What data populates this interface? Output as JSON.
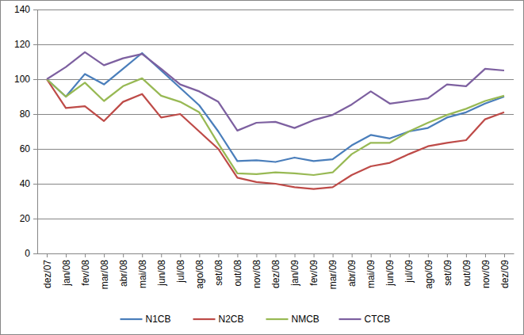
{
  "chart_data": {
    "type": "line",
    "categories": [
      "dez/07",
      "jan/08",
      "fev/08",
      "mar/08",
      "abr/08",
      "mai/08",
      "jun/08",
      "jul/08",
      "ago/08",
      "set/08",
      "out/08",
      "nov/08",
      "dez/08",
      "jan/09",
      "fev/09",
      "mar/09",
      "abr/09",
      "mai/09",
      "jun/09",
      "jul/09",
      "ago/09",
      "set/09",
      "out/09",
      "nov/09",
      "dez/09"
    ],
    "series": [
      {
        "name": "N1CB",
        "color": "#4a7ebb",
        "values": [
          100,
          90,
          103,
          97,
          106,
          115,
          105,
          95,
          85,
          70,
          53,
          53.5,
          52.5,
          55,
          53,
          54,
          62,
          68,
          66,
          70,
          72,
          78,
          81,
          86,
          90
        ]
      },
      {
        "name": "N2CB",
        "color": "#be4b48",
        "values": [
          100,
          83.5,
          84.5,
          76,
          87,
          91.5,
          78,
          80,
          70,
          60,
          43.5,
          41,
          40,
          38,
          37,
          38,
          45,
          50,
          52,
          57,
          61.5,
          63.5,
          65,
          77,
          81
        ]
      },
      {
        "name": "NMCB",
        "color": "#98b954",
        "values": [
          100,
          90,
          98,
          87.5,
          96,
          100.5,
          90.5,
          87,
          81,
          63,
          46,
          45.5,
          46.5,
          46,
          45,
          46.5,
          57,
          63.5,
          63.5,
          70,
          75,
          79.5,
          83,
          87.5,
          90.5
        ]
      },
      {
        "name": "CTCB",
        "color": "#7d60a0",
        "values": [
          100,
          107,
          115.5,
          108,
          112,
          114.5,
          106,
          97,
          93,
          87,
          70.5,
          75,
          75.5,
          72,
          76.5,
          79.5,
          85.5,
          93,
          86,
          87.5,
          89,
          97,
          96,
          106,
          105
        ]
      }
    ],
    "ylim": [
      0,
      140
    ],
    "yticks": [
      0,
      20,
      40,
      60,
      80,
      100,
      120,
      140
    ],
    "grid": true,
    "legend": "bottom"
  }
}
